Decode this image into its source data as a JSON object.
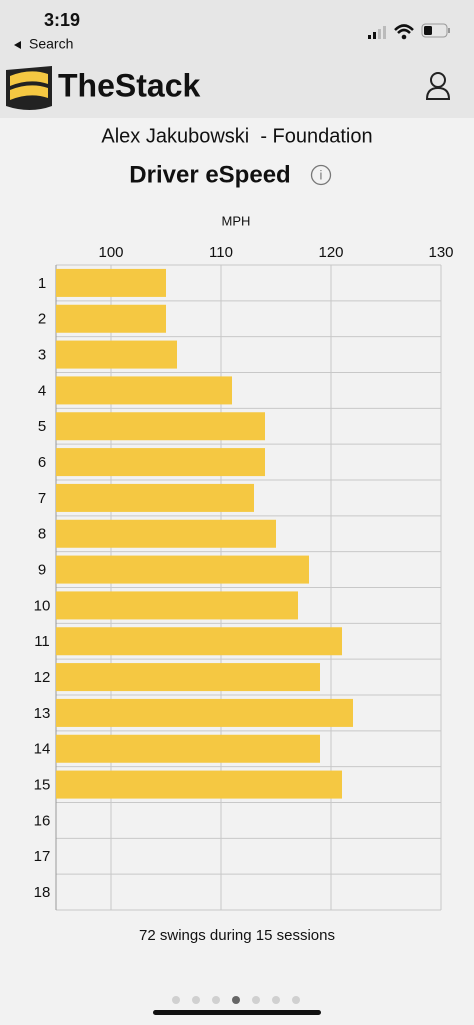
{
  "status_bar": {
    "time": "3:19",
    "back": "Search"
  },
  "header": {
    "brand": "TheStack",
    "subtitle": "Alex Jakubowski  - Foundation"
  },
  "chart_data": {
    "type": "bar",
    "orientation": "horizontal",
    "title": "Driver eSpeed",
    "xlabel": "MPH",
    "categories": [
      "1",
      "2",
      "3",
      "4",
      "5",
      "6",
      "7",
      "8",
      "9",
      "10",
      "11",
      "12",
      "13",
      "14",
      "15",
      "16",
      "17",
      "18"
    ],
    "values": [
      105,
      105,
      106,
      111,
      114,
      114,
      113,
      115,
      118,
      117,
      121,
      119,
      122,
      119,
      121,
      null,
      null,
      null
    ],
    "color": "#f5c842",
    "xlim": [
      95,
      130
    ],
    "xticks": [
      100,
      110,
      120,
      130
    ],
    "grid": true
  },
  "summary": "72 swings during 15 sessions"
}
